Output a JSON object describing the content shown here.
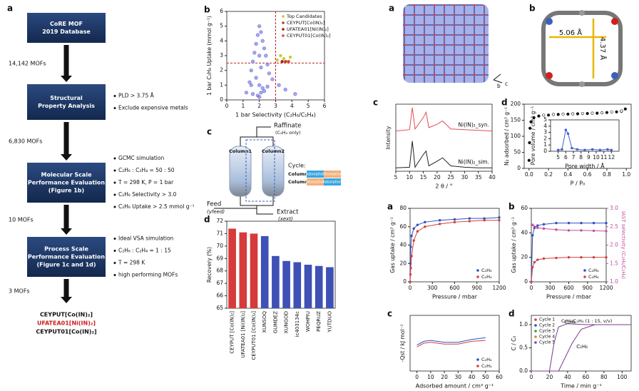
{
  "flowchart": {
    "label": "a",
    "boxes": [
      [
        "CoRE MOF",
        "2019 Database"
      ],
      [
        "Structural",
        "Property Analysis"
      ],
      [
        "Molecular Scale",
        "Performance Evaluation",
        "(Figure 1b)"
      ],
      [
        "Process Scale",
        "Performance Evaluation",
        "(Figure 1c and 1d)"
      ]
    ],
    "counts": [
      "14,142 MOFs",
      "6,830 MOFs",
      "10 MOFs",
      "3 MOFs"
    ],
    "criteria": [
      [
        "PLD > 3.75 Å",
        "Exclude expensive metals"
      ],
      [
        "GCMC simulation",
        "C₂H₆ : C₂H₄ = 50 : 50",
        "T = 298 K, P = 1 bar",
        "C₂H₆ Selectivity > 3.0",
        "C₂H₆ Uptake > 2.5 mmol g⁻¹"
      ],
      [
        "Ideal VSA simulation",
        "C₂H₆ : C₂H₄ = 1 : 15",
        "T = 298 K",
        "high performing MOFs"
      ]
    ],
    "results": [
      "CEYPUT[Co(IN)₂]",
      "UFATEA01[Ni(IN)₂]",
      "CEYPUT01[Co(IN)₂]"
    ]
  },
  "process": {
    "label": "c",
    "columns": [
      "Column1",
      "Column2"
    ],
    "raffinate": "Raffinate",
    "raffinate_note": "(C₂H₄ only)",
    "cycle": "Cycle:",
    "rows": [
      {
        "name": "Column1",
        "steps": [
          "Adsorption",
          "Desorption"
        ]
      },
      {
        "name": "Column2",
        "steps": [
          "Desorption",
          "Adsorption"
        ]
      }
    ],
    "feed": "Feed",
    "feed_note": "(yfeed)",
    "extract": "Extract",
    "extract_note": "(xext)"
  },
  "structures": {
    "label_a": "a",
    "label_b": "b",
    "axes": [
      "b",
      "c"
    ],
    "distances": [
      "5.06 Å",
      "4.37 Å"
    ]
  },
  "chart_data": [
    {
      "type": "scatter",
      "label": "b",
      "x_label": "1 bar Selectivity (C₂H₆/C₂H₄)",
      "y_label": "1 bar C₂H₆ Uptake (mmol g⁻¹)",
      "xlim": [
        0,
        6
      ],
      "xticks": [
        0,
        1,
        2,
        3,
        4,
        5,
        6
      ],
      "ylim": [
        0,
        6
      ],
      "yticks": [
        0,
        1,
        2,
        3,
        4,
        5,
        6
      ],
      "thresholds": {
        "x": 3,
        "y": 2.5
      },
      "legend": "upper right",
      "series": [
        {
          "color": "#6b70d8",
          "x": [
            1.2,
            1.4,
            1.5,
            1.6,
            1.7,
            1.8,
            1.9,
            2.0,
            2.0,
            2.1,
            2.1,
            2.2,
            2.2,
            2.3,
            2.4,
            2.5,
            2.6,
            2.8,
            3.2,
            3.6,
            4.2,
            1.9,
            2.0,
            2.1,
            1.8,
            2.3,
            2.0,
            1.6,
            2.5,
            1.5
          ],
          "values": [
            0.5,
            1.2,
            2.0,
            2.6,
            3.2,
            3.8,
            4.4,
            5.0,
            1.0,
            4.6,
            2.2,
            4.0,
            0.8,
            3.5,
            3.0,
            2.4,
            1.8,
            1.4,
            1.0,
            0.7,
            0.4,
            0.3,
            0.2,
            0.5,
            1.5,
            0.6,
            3.0,
            0.4,
            0.9,
            1.0
          ]
        },
        {
          "name": "Top Candidates",
          "color": "#c8c828",
          "x": [
            3.1,
            3.3,
            3.5,
            3.7,
            3.9
          ],
          "values": [
            2.7,
            3.0,
            2.8,
            2.6,
            2.9
          ]
        },
        {
          "name": "CEYPUT[Co(IN)₂]",
          "color": "#c0392b",
          "x": [
            3.6
          ],
          "values": [
            2.6
          ]
        },
        {
          "name": "UFATEA01[Ni(IN)₂]",
          "color": "#a01818",
          "x": [
            3.4
          ],
          "values": [
            2.6
          ]
        },
        {
          "name": "CEYPUT01[Co(IN)₂]",
          "color": "#e04040",
          "x": [
            3.8
          ],
          "values": [
            2.6
          ]
        }
      ]
    },
    {
      "type": "bar",
      "label": "d",
      "y_label": "Recovery (%)",
      "categories": [
        "CEYPUT [Co(IN)₂]",
        "UFATEA01 [Ni(IN)₂]",
        "CEYPUT01 [Co(IN)₂]",
        "XUNSOQ",
        "GUMDEZ",
        "XUNGOD",
        "ic403134c",
        "WOHPIU",
        "PEQRUZ",
        "YUTDUO"
      ],
      "values": [
        71.4,
        71.1,
        71.0,
        70.8,
        69.2,
        68.8,
        68.7,
        68.5,
        68.4,
        68.3
      ],
      "colors": [
        "#d63a3a",
        "#d63a3a",
        "#d63a3a",
        "#3f51b5",
        "#3f51b5",
        "#3f51b5",
        "#3f51b5",
        "#3f51b5",
        "#3f51b5",
        "#3f51b5"
      ],
      "ylim": [
        65,
        72
      ],
      "yticks": [
        65,
        66,
        67,
        68,
        69,
        70,
        71,
        72
      ]
    },
    {
      "type": "line",
      "label": "c",
      "x_label": "2 θ / °",
      "y_label": "Intensity",
      "xlim": [
        5,
        40
      ],
      "xticks": [
        5,
        10,
        15,
        20,
        25,
        30,
        35,
        40
      ],
      "ylim": [
        0,
        10
      ],
      "series": [
        {
          "name": "Ni(IN)₂_syn.",
          "color": "#e05050",
          "x": [
            5,
            10,
            11,
            12,
            15,
            16,
            17,
            20,
            22,
            25,
            30,
            35,
            40
          ],
          "values": [
            6,
            6.2,
            9.5,
            6.3,
            8,
            8.8,
            6.5,
            7,
            7.5,
            6.3,
            6.2,
            6.1,
            6
          ]
        },
        {
          "name": "Ni(IN)₂_sim.",
          "color": "#222222",
          "x": [
            5,
            10,
            11,
            12,
            15,
            16,
            17,
            20,
            22,
            25,
            30,
            35,
            40
          ],
          "values": [
            0.5,
            0.6,
            4.5,
            0.6,
            2.5,
            3,
            0.8,
            1.5,
            2,
            0.8,
            0.6,
            0.5,
            0.5
          ]
        }
      ]
    },
    {
      "type": "scatter",
      "label": "d",
      "x_label": "P / P₀",
      "y_label": "N₂ adsorbed / cm³ g⁻¹",
      "xlim": [
        -0.05,
        1.05
      ],
      "xticks": [
        {
          "value": 0,
          "label": "0.0"
        },
        0.2,
        0.4,
        0.6,
        0.8,
        {
          "value": 1,
          "label": "1.0"
        }
      ],
      "ylim": [
        0,
        200
      ],
      "yticks": [
        0,
        50,
        100,
        150,
        200
      ],
      "series": [
        {
          "color": "#111111",
          "x": [
            0,
            0.005,
            0.01,
            0.02,
            0.05,
            0.1,
            0.2,
            0.3,
            0.4,
            0.5,
            0.6,
            0.7,
            0.8,
            0.9,
            0.95,
            0.99
          ],
          "values": [
            25,
            80,
            125,
            145,
            158,
            163,
            166,
            168,
            169,
            170,
            171,
            172,
            174,
            176,
            178,
            185
          ]
        },
        {
          "color": "#111111",
          "filled": false,
          "x": [
            0.95,
            0.85,
            0.75,
            0.65,
            0.55,
            0.45,
            0.35,
            0.25,
            0.15
          ],
          "values": [
            179,
            176,
            173,
            172,
            171,
            170,
            169,
            168,
            166
          ]
        }
      ]
    },
    {
      "type": "line",
      "x_label": "Pore width / Å",
      "y_label": "Pore volume / cm³ g⁻¹",
      "markers": true,
      "xlim": [
        4,
        13
      ],
      "xticks": [
        5,
        6,
        7,
        8,
        9,
        10,
        11,
        12
      ],
      "ylim": [
        0,
        5
      ],
      "yticks": [
        0,
        1,
        2,
        3,
        4,
        5
      ],
      "series": [
        {
          "color": "#4060d0",
          "x": [
            5,
            5.5,
            6,
            6.3,
            6.8,
            7.5,
            8.5,
            9.5,
            10.5,
            11.5,
            12
          ],
          "values": [
            0.2,
            0.3,
            3.4,
            2.8,
            0.5,
            0.3,
            0.2,
            0.3,
            0.2,
            0.3,
            0.2
          ]
        }
      ]
    },
    {
      "type": "line",
      "label": "a",
      "x_label": "Pressure / mbar",
      "y_label": "Gas uptake / cm³ g⁻¹",
      "markers": true,
      "legend": "lower right",
      "xlim": [
        0,
        1200
      ],
      "xticks": [
        0,
        300,
        600,
        900,
        1200
      ],
      "ylim": [
        0,
        80
      ],
      "yticks": [
        0,
        20,
        40,
        60,
        80
      ],
      "series": [
        {
          "name": "C₂H₆",
          "color": "#3050c0",
          "x": [
            0,
            5,
            10,
            20,
            50,
            100,
            200,
            400,
            600,
            800,
            1000,
            1200
          ],
          "values": [
            0,
            20,
            38,
            50,
            58,
            62,
            65,
            67,
            68,
            69,
            69,
            70
          ]
        },
        {
          "name": "C₂H₄",
          "color": "#d04040",
          "x": [
            0,
            5,
            10,
            20,
            50,
            100,
            200,
            400,
            600,
            800,
            1000,
            1200
          ],
          "values": [
            0,
            8,
            15,
            28,
            45,
            55,
            60,
            63,
            65,
            66,
            67,
            67
          ]
        }
      ]
    },
    {
      "type": "line",
      "label": "b",
      "x_label": "Pressure / mbar",
      "y_label": "Gas uptake / cm³ g⁻¹",
      "y2_label": "IAST selectivity (C₂H₆/C₂H₄)",
      "markers": true,
      "legend": "lower right",
      "xlim": [
        0,
        1200
      ],
      "xticks": [
        0,
        300,
        600,
        900,
        1200
      ],
      "ylim": [
        0,
        60
      ],
      "yticks": [
        0,
        20,
        40,
        60
      ],
      "y2lim": [
        1,
        3
      ],
      "y2ticks": [
        {
          "value": 1,
          "label": "1.0"
        },
        1.5,
        {
          "value": 2,
          "label": "2.0"
        },
        2.5,
        {
          "value": 3,
          "label": "3.0"
        }
      ],
      "series": [
        {
          "name": "C₂H₆",
          "color": "#3050c0",
          "x": [
            0,
            20,
            50,
            100,
            200,
            400,
            600,
            800,
            1000,
            1200
          ],
          "values": [
            0,
            38,
            44,
            46,
            47,
            48,
            48,
            48,
            48,
            48
          ]
        },
        {
          "name": "C₂H₄",
          "color": "#d04040",
          "x": [
            0,
            20,
            50,
            100,
            200,
            400,
            600,
            800,
            1000,
            1200
          ],
          "values": [
            0,
            12,
            16,
            18,
            19,
            19.5,
            20,
            20,
            20,
            20
          ]
        },
        {
          "color": "#c050a0",
          "axis": "y2",
          "x": [
            20,
            50,
            100,
            200,
            400,
            600,
            800,
            1000,
            1200
          ],
          "values": [
            2.55,
            2.5,
            2.47,
            2.45,
            2.42,
            2.4,
            2.4,
            2.39,
            2.38
          ]
        }
      ]
    },
    {
      "type": "line",
      "label": "c",
      "x_label": "Adsorbed amount / cm³ g⁻¹",
      "y_label": "-Qst / kJ mol⁻¹",
      "legend": "lower right",
      "xlim": [
        -5,
        60
      ],
      "xticks": [
        0,
        10,
        20,
        30,
        40,
        50,
        60
      ],
      "ylim": [
        20,
        50
      ],
      "series": [
        {
          "name": "C₂H₆",
          "color": "#3050c0",
          "x": [
            0,
            5,
            10,
            20,
            30,
            40,
            50
          ],
          "values": [
            34,
            36,
            36.5,
            35.5,
            35.5,
            37,
            38
          ]
        },
        {
          "name": "C₂H₄",
          "color": "#d04040",
          "x": [
            0,
            5,
            10,
            20,
            30,
            40,
            50
          ],
          "values": [
            33,
            35,
            35.5,
            34.5,
            34.5,
            36,
            36.5
          ]
        }
      ]
    },
    {
      "type": "line",
      "label": "d",
      "x_label": "Time / min g⁻¹",
      "y_label": "C / C₀",
      "note": "C₂H₆/C₂H₄ (1 : 15, v/v)",
      "xlim": [
        0,
        110
      ],
      "xticks": [
        0,
        20,
        40,
        60,
        80,
        100
      ],
      "ylim": [
        0,
        1.2
      ],
      "yticks": [
        {
          "value": 0,
          "label": "0.0"
        },
        0.5,
        {
          "value": 1,
          "label": "1.0"
        }
      ],
      "cycles": [
        {
          "name": "Cycle 1",
          "color": "#d04040"
        },
        {
          "name": "Cycle 2",
          "color": "#3050c0"
        },
        {
          "name": "Cycle 3",
          "color": "#40a040"
        },
        {
          "name": "Cycle 4",
          "color": "#e08030"
        },
        {
          "name": "Cycle 5",
          "color": "#8040a0"
        }
      ],
      "series": [
        {
          "name": "C₂H₄",
          "color": "#7a3a90",
          "x": [
            0,
            20,
            25,
            30,
            40,
            60,
            110
          ],
          "values": [
            0,
            0,
            0.6,
            0.95,
            1.02,
            1,
            1
          ]
        },
        {
          "name": "C₂H₆",
          "color": "#7a3a90",
          "x": [
            0,
            30,
            35,
            45,
            55,
            70,
            110
          ],
          "values": [
            0,
            0,
            0.2,
            0.6,
            0.9,
            1,
            1
          ]
        }
      ]
    }
  ]
}
